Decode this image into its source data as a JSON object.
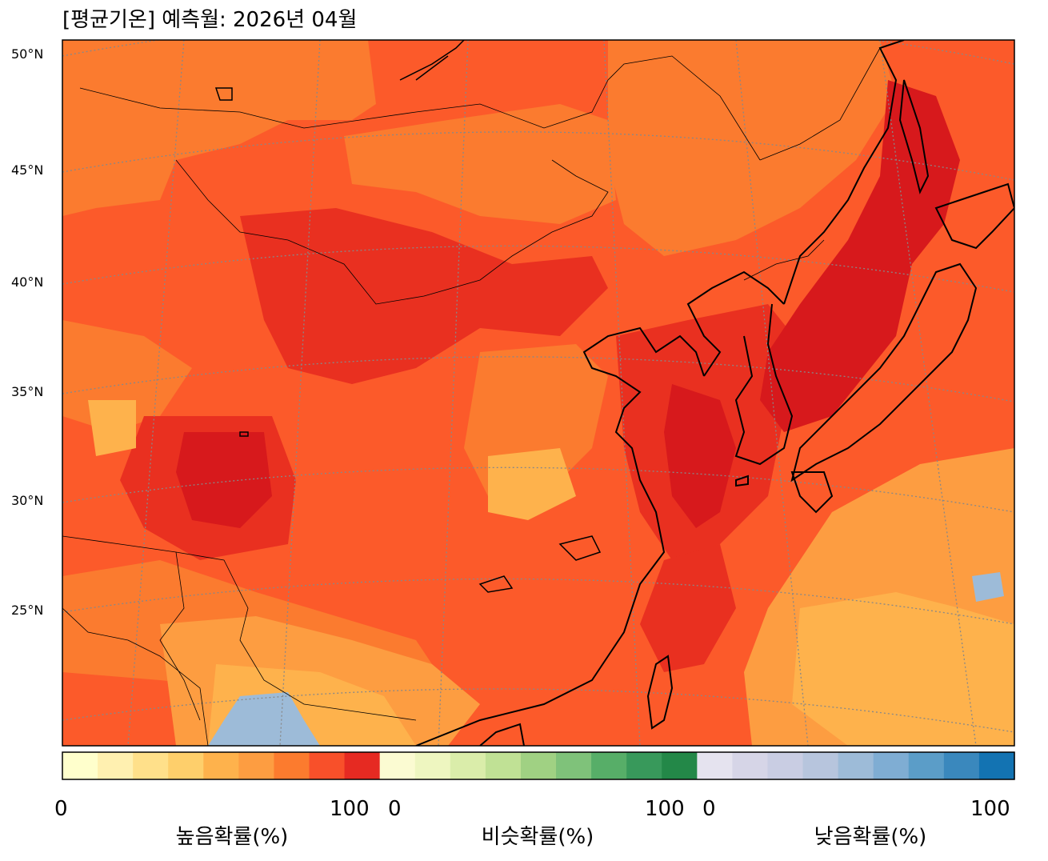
{
  "title": "[평균기온] 예측월: 2026년 04월",
  "latitude_labels": [
    {
      "text": "50°N",
      "lat": 50
    },
    {
      "text": "45°N",
      "lat": 45
    },
    {
      "text": "40°N",
      "lat": 40
    },
    {
      "text": "35°N",
      "lat": 35
    },
    {
      "text": "30°N",
      "lat": 30
    },
    {
      "text": "25°N",
      "lat": 25
    }
  ],
  "colorbars": [
    {
      "label": "높음확률(%)",
      "min_label": "0",
      "max_label": "100",
      "colors": [
        "#ffffcc",
        "#fff0b0",
        "#ffe08a",
        "#fecf6b",
        "#feb24c",
        "#fd9d41",
        "#fc7b2e",
        "#f8502a",
        "#e62a22"
      ]
    },
    {
      "label": "비슷확률(%)",
      "min_label": "0",
      "max_label": "100",
      "colors": [
        "#fbfbd2",
        "#eef6c0",
        "#daedaa",
        "#c0e195",
        "#a0d183",
        "#7fc27a",
        "#57ae68",
        "#38995b",
        "#238848"
      ]
    },
    {
      "label": "낮음확률(%)",
      "min_label": "0",
      "max_label": "100",
      "colors": [
        "#e5e3ef",
        "#d6d5e7",
        "#c9cde3",
        "#b7c5dd",
        "#9dbbd8",
        "#7fadd3",
        "#5b9dc8",
        "#3a88bd",
        "#1373b2"
      ]
    }
  ],
  "map_colors": {
    "base": "#fc5a2a",
    "warm_mid": "#fb7b2f",
    "hot": "#d7191c",
    "red": "#e93020",
    "orange": "#fd9d41",
    "light_orange": "#feb24c",
    "blue": "#9dbbd8",
    "grid": "#888888",
    "coast": "#000000"
  }
}
